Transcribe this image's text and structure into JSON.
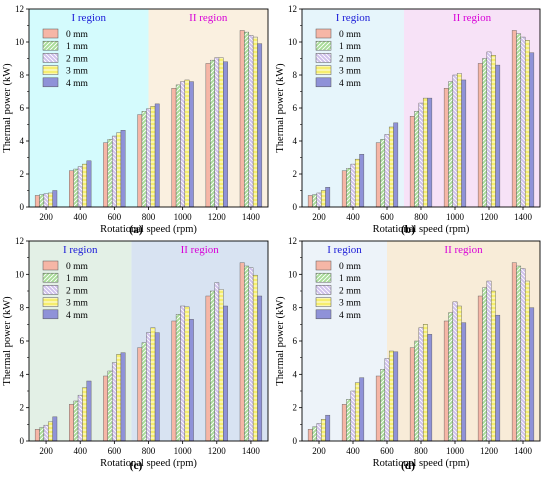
{
  "figure": {
    "panel_tags": [
      "(a)",
      "(b)",
      "(c)",
      "(d)"
    ]
  },
  "colors": {
    "series": [
      "#f6b6a6",
      "#a8dc98",
      "#cfc0ec",
      "#f6ee6e",
      "#8f92d8"
    ],
    "region_I": [
      "#d4fbfd",
      "#e6f5fb",
      "#e3f0e6",
      "#edf3f9"
    ],
    "region_II": [
      "#faf0e0",
      "#f7e2f7",
      "#d8e3f2",
      "#f8ecd8"
    ],
    "region_I_label": "#1a1ad8",
    "region_II_label": "#d800d8"
  },
  "chart_data": [
    {
      "type": "bar",
      "tag": "(a)",
      "xlabel": "Rotational speed (rpm)",
      "ylabel": "Thermal power (kW)",
      "ylim": [
        0,
        12
      ],
      "yticks": [
        0,
        2,
        4,
        6,
        8,
        10,
        12
      ],
      "categories": [
        "200",
        "400",
        "600",
        "800",
        "1000",
        "1200",
        "1400"
      ],
      "regions": [
        {
          "label": "I region",
          "from": 0,
          "to": 3.5
        },
        {
          "label": "II region",
          "from": 3.5,
          "to": 7
        }
      ],
      "legend": "top-left",
      "series": [
        {
          "name": "0 mm",
          "values": [
            0.7,
            2.2,
            3.9,
            5.6,
            7.2,
            8.7,
            10.7
          ]
        },
        {
          "name": "1 mm",
          "values": [
            0.75,
            2.3,
            4.1,
            5.8,
            7.4,
            8.9,
            10.6
          ]
        },
        {
          "name": "2 mm",
          "values": [
            0.8,
            2.45,
            4.3,
            5.95,
            7.6,
            9.05,
            10.4
          ]
        },
        {
          "name": "3 mm",
          "values": [
            0.85,
            2.6,
            4.5,
            6.1,
            7.7,
            9.05,
            10.3
          ]
        },
        {
          "name": "4 mm",
          "values": [
            1.0,
            2.8,
            4.65,
            6.25,
            7.6,
            8.8,
            9.9
          ]
        }
      ]
    },
    {
      "type": "bar",
      "tag": "(b)",
      "xlabel": "Rotational speed (rpm)",
      "ylabel": "Thermal power (kW)",
      "ylim": [
        0,
        12
      ],
      "yticks": [
        0,
        2,
        4,
        6,
        8,
        10,
        12
      ],
      "categories": [
        "200",
        "400",
        "600",
        "800",
        "1000",
        "1200",
        "1400"
      ],
      "regions": [
        {
          "label": "I region",
          "from": 0,
          "to": 3
        },
        {
          "label": "II region",
          "from": 3,
          "to": 7
        }
      ],
      "legend": "top-left",
      "series": [
        {
          "name": "0 mm",
          "values": [
            0.7,
            2.2,
            3.9,
            5.5,
            7.2,
            8.7,
            10.7
          ]
        },
        {
          "name": "1 mm",
          "values": [
            0.75,
            2.35,
            4.1,
            5.8,
            7.6,
            9.0,
            10.5
          ]
        },
        {
          "name": "2 mm",
          "values": [
            0.85,
            2.6,
            4.4,
            6.3,
            8.0,
            9.4,
            10.3
          ]
        },
        {
          "name": "3 mm",
          "values": [
            1.0,
            2.9,
            4.85,
            6.6,
            8.1,
            9.2,
            10.1
          ]
        },
        {
          "name": "4 mm",
          "values": [
            1.2,
            3.2,
            5.1,
            6.6,
            7.7,
            8.6,
            9.35
          ]
        }
      ]
    },
    {
      "type": "bar",
      "tag": "(c)",
      "xlabel": "Rotational speed (rpm)",
      "ylabel": "Thermal power (kW)",
      "ylim": [
        0,
        12
      ],
      "yticks": [
        0,
        2,
        4,
        6,
        8,
        10,
        12
      ],
      "categories": [
        "200",
        "400",
        "600",
        "800",
        "1000",
        "1200",
        "1400"
      ],
      "regions": [
        {
          "label": "I region",
          "from": 0,
          "to": 3
        },
        {
          "label": "II region",
          "from": 3,
          "to": 7
        }
      ],
      "legend": "top-left",
      "series": [
        {
          "name": "0 mm",
          "values": [
            0.7,
            2.2,
            3.9,
            5.6,
            7.2,
            8.7,
            10.7
          ]
        },
        {
          "name": "1 mm",
          "values": [
            0.8,
            2.4,
            4.2,
            5.9,
            7.6,
            9.0,
            10.5
          ]
        },
        {
          "name": "2 mm",
          "values": [
            0.95,
            2.75,
            4.7,
            6.5,
            8.1,
            9.5,
            10.4
          ]
        },
        {
          "name": "3 mm",
          "values": [
            1.15,
            3.2,
            5.2,
            6.8,
            8.05,
            9.1,
            9.95
          ]
        },
        {
          "name": "4 mm",
          "values": [
            1.45,
            3.6,
            5.3,
            6.5,
            7.3,
            8.1,
            8.7
          ]
        }
      ]
    },
    {
      "type": "bar",
      "tag": "(d)",
      "xlabel": "Rotational speed (rpm)",
      "ylabel": "Thermal power (kW)",
      "ylim": [
        0,
        12
      ],
      "yticks": [
        0,
        2,
        4,
        6,
        8,
        10,
        12
      ],
      "categories": [
        "200",
        "400",
        "600",
        "800",
        "1000",
        "1200",
        "1400"
      ],
      "regions": [
        {
          "label": "I region",
          "from": 0,
          "to": 2.5
        },
        {
          "label": "II region",
          "from": 2.5,
          "to": 7
        }
      ],
      "legend": "top-left",
      "series": [
        {
          "name": "0 mm",
          "values": [
            0.7,
            2.2,
            3.9,
            5.6,
            7.2,
            8.7,
            10.7
          ]
        },
        {
          "name": "1 mm",
          "values": [
            0.85,
            2.5,
            4.3,
            6.0,
            7.7,
            9.2,
            10.5
          ]
        },
        {
          "name": "2 mm",
          "values": [
            1.05,
            3.0,
            4.95,
            6.8,
            8.35,
            9.6,
            10.35
          ]
        },
        {
          "name": "3 mm",
          "values": [
            1.3,
            3.5,
            5.4,
            7.0,
            8.1,
            9.0,
            9.6
          ]
        },
        {
          "name": "4 mm",
          "values": [
            1.55,
            3.8,
            5.35,
            6.4,
            7.1,
            7.55,
            8.0
          ]
        }
      ]
    }
  ]
}
